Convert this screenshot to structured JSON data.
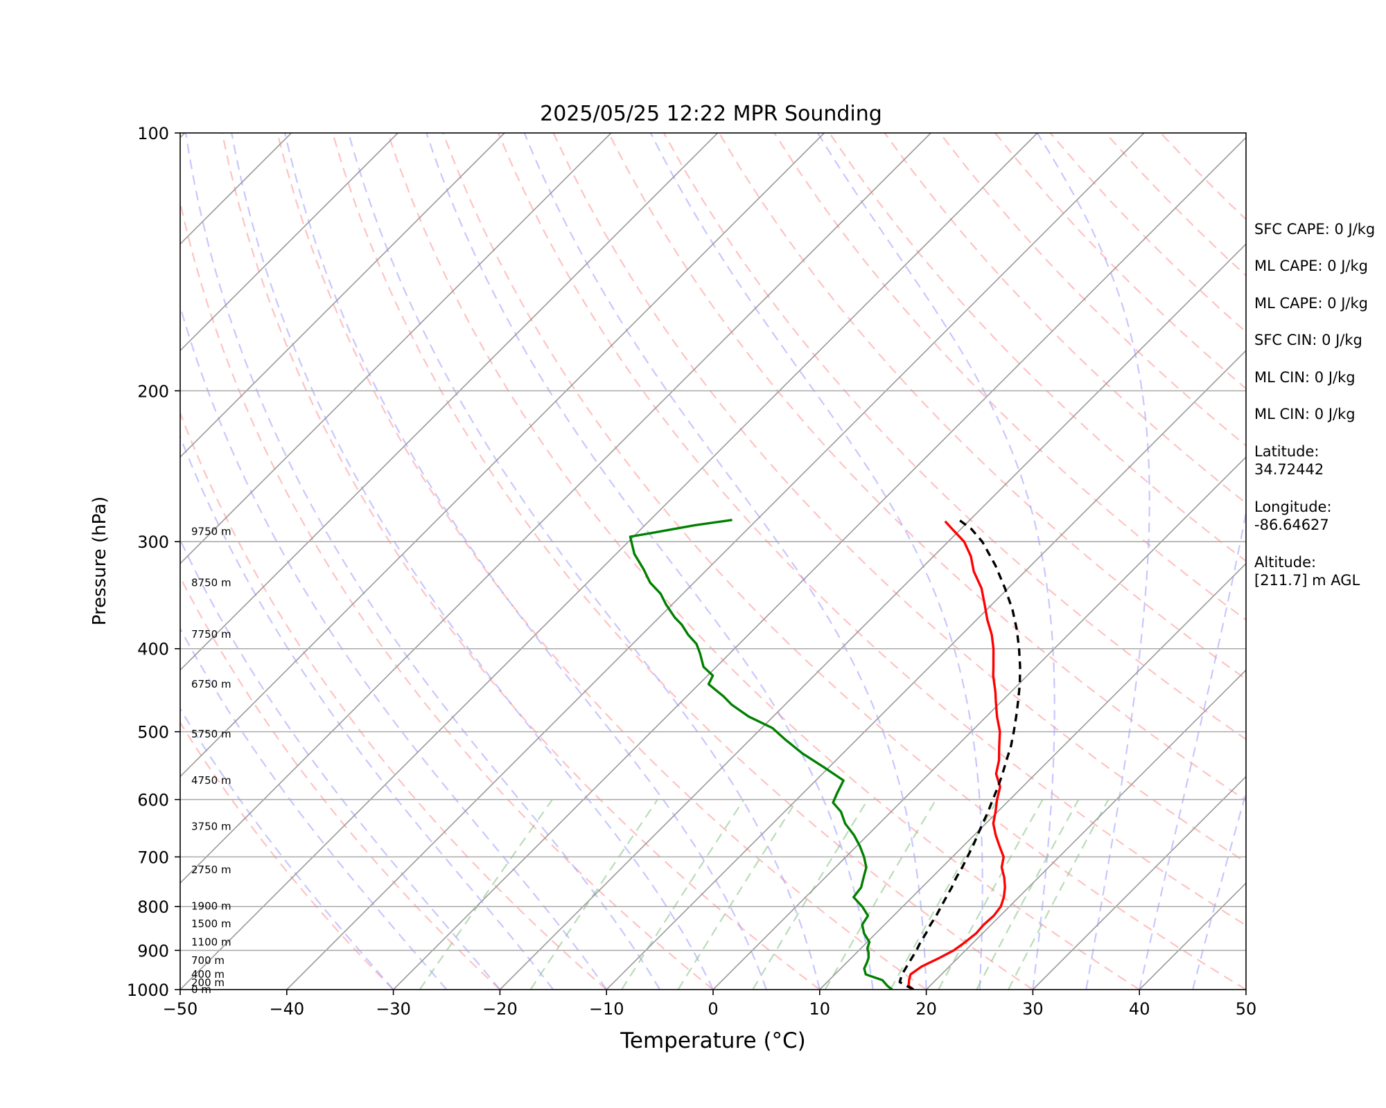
{
  "chart_data": {
    "type": "line",
    "title": "2025/05/25 12:22 MPR Sounding",
    "xlabel": "Temperature (°C)",
    "ylabel": "Pressure (hPa)",
    "xlim": [
      -50,
      50
    ],
    "ylim": [
      1000,
      100
    ],
    "y_scale": "log",
    "skew": "45 degrees",
    "grid": true,
    "x_ticks": [
      "−50",
      "−40",
      "−30",
      "−20",
      "−10",
      "0",
      "10",
      "20",
      "30",
      "40",
      "50"
    ],
    "y_ticks": [
      "100",
      "200",
      "300",
      "400",
      "500",
      "600",
      "700",
      "800",
      "900",
      "1000"
    ],
    "height_labels": [
      {
        "p": 1000,
        "label": "0 m"
      },
      {
        "p": 982,
        "label": "200 m"
      },
      {
        "p": 960,
        "label": "400 m"
      },
      {
        "p": 925,
        "label": "700 m"
      },
      {
        "p": 880,
        "label": "1100 m"
      },
      {
        "p": 838,
        "label": "1500 m"
      },
      {
        "p": 799,
        "label": "1900 m"
      },
      {
        "p": 725,
        "label": "2750 m"
      },
      {
        "p": 645,
        "label": "3750 m"
      },
      {
        "p": 570,
        "label": "4750 m"
      },
      {
        "p": 503,
        "label": "5750 m"
      },
      {
        "p": 440,
        "label": "6750 m"
      },
      {
        "p": 385,
        "label": "7750 m"
      },
      {
        "p": 335,
        "label": "8750 m"
      },
      {
        "p": 292,
        "label": "9750 m"
      }
    ],
    "series": [
      {
        "role": "temperature",
        "color": "#ff0000",
        "style": "solid",
        "points": [
          [
            18.8,
            1000
          ],
          [
            18.0,
            990
          ],
          [
            17.5,
            975
          ],
          [
            17.1,
            960
          ],
          [
            17.4,
            940
          ],
          [
            18.2,
            920
          ],
          [
            18.9,
            900
          ],
          [
            19.2,
            880
          ],
          [
            19.4,
            860
          ],
          [
            19.3,
            840
          ],
          [
            19.4,
            820
          ],
          [
            19.2,
            800
          ],
          [
            18.6,
            780
          ],
          [
            17.8,
            760
          ],
          [
            16.8,
            740
          ],
          [
            15.6,
            720
          ],
          [
            14.8,
            700
          ],
          [
            13.4,
            680
          ],
          [
            12.0,
            660
          ],
          [
            10.7,
            640
          ],
          [
            9.8,
            620
          ],
          [
            8.8,
            600
          ],
          [
            7.9,
            580
          ],
          [
            6.3,
            560
          ],
          [
            5.3,
            540
          ],
          [
            4.0,
            520
          ],
          [
            2.7,
            500
          ],
          [
            1.0,
            480
          ],
          [
            -0.6,
            460
          ],
          [
            -1.4,
            450
          ],
          [
            -3.2,
            430
          ],
          [
            -4.0,
            420
          ],
          [
            -5.7,
            400
          ],
          [
            -7.2,
            385
          ],
          [
            -9.0,
            370
          ],
          [
            -10.7,
            355
          ],
          [
            -12.5,
            340
          ],
          [
            -14.8,
            325
          ],
          [
            -16.5,
            312
          ],
          [
            -18.5,
            300
          ],
          [
            -20.8,
            290
          ],
          [
            -22.2,
            284
          ]
        ]
      },
      {
        "role": "dewpoint",
        "color": "#008000",
        "style": "solid",
        "points": [
          [
            16.8,
            1000
          ],
          [
            16.0,
            990
          ],
          [
            15.0,
            975
          ],
          [
            12.9,
            960
          ],
          [
            12.2,
            945
          ],
          [
            11.9,
            930
          ],
          [
            11.6,
            918
          ],
          [
            11.1,
            905
          ],
          [
            10.6,
            895
          ],
          [
            10.2,
            880
          ],
          [
            8.9,
            860
          ],
          [
            7.9,
            840
          ],
          [
            7.6,
            820
          ],
          [
            6.2,
            800
          ],
          [
            4.5,
            780
          ],
          [
            4.3,
            760
          ],
          [
            3.6,
            740
          ],
          [
            2.9,
            720
          ],
          [
            1.7,
            700
          ],
          [
            0.3,
            680
          ],
          [
            -1.3,
            660
          ],
          [
            -3.2,
            640
          ],
          [
            -4.7,
            620
          ],
          [
            -6.3,
            605
          ],
          [
            -6.8,
            590
          ],
          [
            -7.4,
            570
          ],
          [
            -10.5,
            550
          ],
          [
            -13.8,
            530
          ],
          [
            -16.8,
            510
          ],
          [
            -19.0,
            495
          ],
          [
            -22.3,
            480
          ],
          [
            -25.0,
            465
          ],
          [
            -26.5,
            455
          ],
          [
            -29.1,
            440
          ],
          [
            -29.5,
            430
          ],
          [
            -31.2,
            420
          ],
          [
            -32.8,
            405
          ],
          [
            -34.0,
            395
          ],
          [
            -35.7,
            385
          ],
          [
            -37.2,
            375
          ],
          [
            -38.5,
            368
          ],
          [
            -40.6,
            355
          ],
          [
            -42.1,
            345
          ],
          [
            -44.1,
            335
          ],
          [
            -46.0,
            323
          ],
          [
            -48.3,
            310
          ],
          [
            -50.3,
            296
          ],
          [
            -48.6,
            293
          ],
          [
            -45.3,
            287
          ],
          [
            -42.3,
            283
          ]
        ]
      },
      {
        "role": "parcel",
        "color": "#000000",
        "style": "dashed",
        "points": [
          [
            18.8,
            1000
          ],
          [
            16.8,
            980
          ],
          [
            16.3,
            960
          ],
          [
            16.0,
            940
          ],
          [
            15.7,
            920
          ],
          [
            15.4,
            900
          ],
          [
            15.0,
            880
          ],
          [
            14.7,
            860
          ],
          [
            14.3,
            840
          ],
          [
            14.0,
            820
          ],
          [
            13.6,
            800
          ],
          [
            13.2,
            780
          ],
          [
            12.8,
            760
          ],
          [
            12.3,
            740
          ],
          [
            11.9,
            720
          ],
          [
            11.4,
            700
          ],
          [
            10.9,
            680
          ],
          [
            10.3,
            660
          ],
          [
            9.7,
            640
          ],
          [
            9.1,
            620
          ],
          [
            8.4,
            600
          ],
          [
            7.7,
            580
          ],
          [
            6.9,
            560
          ],
          [
            6.0,
            540
          ],
          [
            5.1,
            520
          ],
          [
            4.0,
            500
          ],
          [
            2.8,
            480
          ],
          [
            1.5,
            460
          ],
          [
            0.1,
            440
          ],
          [
            -1.5,
            420
          ],
          [
            -3.3,
            400
          ],
          [
            -5.3,
            380
          ],
          [
            -7.6,
            360
          ],
          [
            -10.3,
            340
          ],
          [
            -13.3,
            320
          ],
          [
            -16.8,
            300
          ],
          [
            -19.0,
            290
          ],
          [
            -21.0,
            283
          ]
        ]
      }
    ]
  },
  "side_panel": {
    "sfc_cape": "SFC CAPE: 0 J/kg",
    "ml_cape_1": "ML CAPE: 0 J/kg",
    "ml_cape_2": "ML CAPE: 0 J/kg",
    "sfc_cin": "SFC CIN: 0 J/kg",
    "ml_cin_1": "ML CIN: 0 J/kg",
    "ml_cin_2": "ML CIN: 0 J/kg",
    "latitude": "Latitude:\n34.72442",
    "longitude": "Longitude:\n-86.64627",
    "altitude": "Altitude:\n[211.7] m AGL"
  }
}
